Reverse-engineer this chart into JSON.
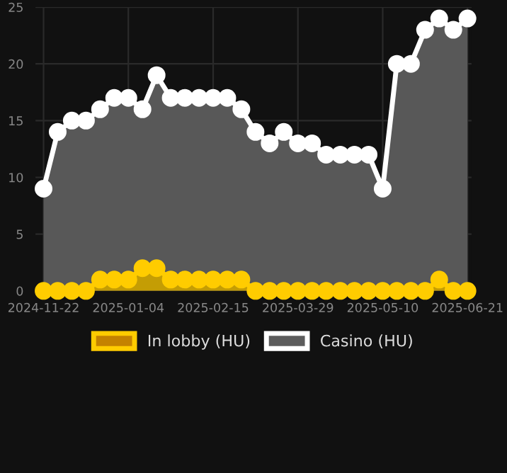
{
  "chart_data": {
    "type": "area",
    "marker": "circle",
    "grid": true,
    "legend": "bottom",
    "x": [
      "2024-11-23",
      "2024-11-30",
      "2024-12-07",
      "2024-12-14",
      "2024-12-21",
      "2024-12-28",
      "2025-01-04",
      "2025-01-11",
      "2025-01-18",
      "2025-01-25",
      "2025-02-01",
      "2025-02-08",
      "2025-02-15",
      "2025-02-22",
      "2025-03-01",
      "2025-03-08",
      "2025-03-15",
      "2025-03-22",
      "2025-03-29",
      "2025-04-05",
      "2025-04-12",
      "2025-04-19",
      "2025-04-26",
      "2025-05-03",
      "2025-05-10",
      "2025-05-17",
      "2025-05-24",
      "2025-05-31",
      "2025-06-07",
      "2025-06-14",
      "2025-06-21"
    ],
    "series": [
      {
        "name": "In lobby (HU)",
        "color": "#ffcc00",
        "values": [
          0,
          0,
          0,
          0,
          1,
          1,
          1,
          2,
          2,
          1,
          1,
          1,
          1,
          1,
          1,
          0,
          0,
          0,
          0,
          0,
          0,
          0,
          0,
          0,
          0,
          0,
          0,
          0,
          1,
          0,
          0
        ]
      },
      {
        "name": "Casino (HU)",
        "color": "#ffffff",
        "values": [
          9,
          14,
          15,
          15,
          16,
          17,
          17,
          16,
          19,
          17,
          17,
          17,
          17,
          17,
          16,
          14,
          13,
          14,
          13,
          13,
          12,
          12,
          12,
          12,
          9,
          20,
          20,
          23,
          24,
          23,
          24
        ]
      }
    ],
    "xlim": [
      "2024-11-19",
      "2025-06-23"
    ],
    "xticks": [
      {
        "value": "2024-11-23",
        "label": "2024-11-22"
      },
      "2025-01-04",
      "2025-02-15",
      "2025-03-29",
      "2025-05-10",
      "2025-06-21"
    ],
    "ylim": [
      0,
      25
    ],
    "yticks": [
      0,
      5,
      10,
      15,
      20,
      25
    ]
  }
}
